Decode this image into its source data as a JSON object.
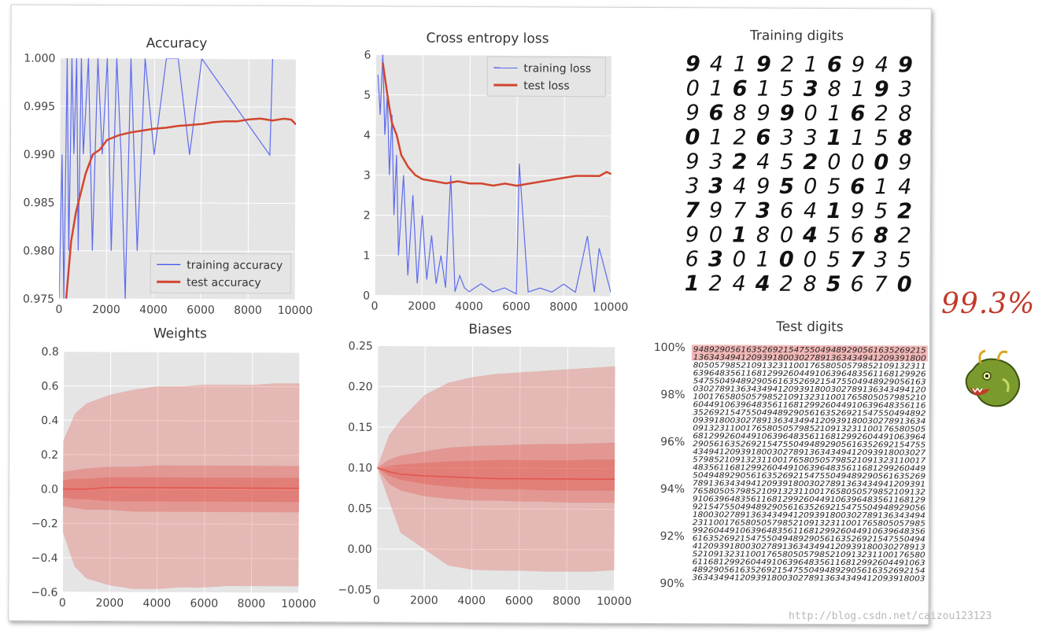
{
  "chart_data": [
    {
      "type": "line",
      "title": "Accuracy",
      "xlim": [
        0,
        10000
      ],
      "ylim": [
        0.975,
        1.0
      ],
      "xticks": [
        "0",
        "2000",
        "4000",
        "6000",
        "8000",
        "10000"
      ],
      "yticks": [
        "0.975",
        "0.980",
        "0.985",
        "0.990",
        "0.995",
        "1.000"
      ],
      "legend_position": "lower-right",
      "series": [
        {
          "name": "training accuracy",
          "color": "#3b4cf0",
          "x": [
            0,
            100,
            200,
            300,
            400,
            500,
            600,
            700,
            800,
            900,
            1000,
            1200,
            1400,
            1600,
            1800,
            2000,
            2200,
            2400,
            2600,
            2800,
            3000,
            3300,
            3600,
            4000,
            4500,
            5000,
            5500,
            6000,
            8900,
            9000
          ],
          "y": [
            0.96,
            0.99,
            0.97,
            1.0,
            0.98,
            1.0,
            0.99,
            1.0,
            0.98,
            1.0,
            0.99,
            1.0,
            0.98,
            1.0,
            0.99,
            1.0,
            0.98,
            1.0,
            0.99,
            0.97,
            1.0,
            0.98,
            1.0,
            0.99,
            1.0,
            1.0,
            0.99,
            1.0,
            0.99,
            1.0
          ]
        },
        {
          "name": "test accuracy",
          "color": "#d2452f",
          "x": [
            300,
            500,
            700,
            900,
            1100,
            1400,
            1700,
            2000,
            2500,
            3000,
            3500,
            4000,
            4500,
            5000,
            5500,
            6000,
            6500,
            7000,
            7500,
            8000,
            8500,
            9000,
            9500,
            9800,
            10000
          ],
          "y": [
            0.975,
            0.981,
            0.984,
            0.986,
            0.988,
            0.99,
            0.9905,
            0.9915,
            0.992,
            0.9923,
            0.9925,
            0.9927,
            0.9928,
            0.993,
            0.9931,
            0.9932,
            0.9934,
            0.9935,
            0.9935,
            0.9937,
            0.9938,
            0.9936,
            0.9938,
            0.9937,
            0.9932
          ]
        }
      ]
    },
    {
      "type": "line",
      "title": "Cross entropy loss",
      "xlim": [
        0,
        10000
      ],
      "ylim": [
        0,
        6
      ],
      "xticks": [
        "0",
        "2000",
        "4000",
        "6000",
        "8000",
        "10000"
      ],
      "yticks": [
        "0",
        "1",
        "2",
        "3",
        "4",
        "5",
        "6"
      ],
      "legend_position": "top-right",
      "series": [
        {
          "name": "training loss",
          "color": "#3b4cf0",
          "x": [
            100,
            200,
            300,
            400,
            500,
            600,
            700,
            800,
            900,
            1000,
            1200,
            1400,
            1600,
            1800,
            2000,
            2200,
            2400,
            2600,
            2800,
            3000,
            3200,
            3400,
            3600,
            3800,
            4000,
            4500,
            5000,
            5500,
            6000,
            6100,
            6500,
            7000,
            7500,
            8000,
            8500,
            9000,
            9300,
            9500,
            10000
          ],
          "y": [
            5.5,
            4.5,
            6.0,
            4.0,
            5.0,
            3.0,
            4.5,
            2.0,
            3.5,
            1.0,
            3.0,
            0.5,
            2.5,
            0.3,
            2.0,
            0.4,
            1.5,
            0.3,
            1.0,
            0.2,
            3.0,
            0.1,
            0.5,
            0.2,
            0.1,
            0.3,
            0.1,
            0.2,
            0.05,
            3.3,
            0.1,
            0.2,
            0.1,
            0.3,
            0.1,
            1.5,
            0.1,
            1.2,
            0.1
          ]
        },
        {
          "name": "test loss",
          "color": "#d2452f",
          "x": [
            300,
            500,
            700,
            900,
            1100,
            1400,
            1700,
            2000,
            2500,
            3000,
            3500,
            4000,
            4500,
            5000,
            5500,
            6000,
            6500,
            7000,
            7500,
            8000,
            8500,
            9000,
            9500,
            9800,
            10000
          ],
          "y": [
            5.8,
            5.0,
            4.3,
            4.0,
            3.5,
            3.2,
            3.0,
            2.9,
            2.85,
            2.8,
            2.85,
            2.8,
            2.8,
            2.75,
            2.8,
            2.75,
            2.8,
            2.85,
            2.9,
            2.95,
            3.0,
            3.0,
            3.0,
            3.1,
            3.05
          ]
        }
      ]
    },
    {
      "type": "area",
      "title": "Weights",
      "xlim": [
        0,
        10000
      ],
      "ylim": [
        -0.6,
        0.8
      ],
      "xticks": [
        "0",
        "2000",
        "4000",
        "6000",
        "8000",
        "10000"
      ],
      "yticks": [
        "−0.6",
        "−0.4",
        "−0.2",
        "0.0",
        "0.2",
        "0.4",
        "0.6",
        "0.8"
      ],
      "x": [
        0,
        500,
        1000,
        2000,
        3000,
        4000,
        5000,
        6000,
        7000,
        8000,
        9000,
        10000
      ],
      "bands": {
        "max": [
          0.28,
          0.44,
          0.5,
          0.55,
          0.58,
          0.6,
          0.6,
          0.61,
          0.61,
          0.61,
          0.62,
          0.62
        ],
        "p90": [
          0.1,
          0.11,
          0.12,
          0.13,
          0.13,
          0.14,
          0.14,
          0.14,
          0.14,
          0.14,
          0.14,
          0.14
        ],
        "p70": [
          0.05,
          0.06,
          0.06,
          0.07,
          0.07,
          0.07,
          0.07,
          0.07,
          0.07,
          0.07,
          0.07,
          0.07
        ],
        "p30": [
          -0.05,
          -0.06,
          -0.06,
          -0.07,
          -0.07,
          -0.07,
          -0.07,
          -0.07,
          -0.07,
          -0.07,
          -0.07,
          -0.07
        ],
        "p10": [
          -0.1,
          -0.11,
          -0.12,
          -0.12,
          -0.13,
          -0.13,
          -0.13,
          -0.13,
          -0.13,
          -0.13,
          -0.13,
          -0.13
        ],
        "min": [
          -0.25,
          -0.45,
          -0.52,
          -0.56,
          -0.58,
          -0.58,
          -0.57,
          -0.57,
          -0.56,
          -0.56,
          -0.56,
          -0.56
        ],
        "median": [
          0.0,
          0.0,
          0.0,
          0.01,
          0.01,
          0.01,
          0.01,
          0.01,
          0.01,
          0.01,
          0.01,
          0.01
        ]
      }
    },
    {
      "type": "area",
      "title": "Biases",
      "xlim": [
        0,
        10000
      ],
      "ylim": [
        -0.05,
        0.25
      ],
      "xticks": [
        "0",
        "2000",
        "4000",
        "6000",
        "8000",
        "10000"
      ],
      "yticks": [
        "−0.05",
        "0.00",
        "0.05",
        "0.10",
        "0.15",
        "0.20",
        "0.25"
      ],
      "x": [
        0,
        500,
        1000,
        2000,
        3000,
        4000,
        5000,
        6000,
        7000,
        8000,
        9000,
        10000
      ],
      "bands": {
        "max": [
          0.1,
          0.14,
          0.16,
          0.19,
          0.205,
          0.212,
          0.216,
          0.218,
          0.22,
          0.222,
          0.224,
          0.226
        ],
        "p90": [
          0.1,
          0.11,
          0.115,
          0.12,
          0.125,
          0.127,
          0.128,
          0.129,
          0.13,
          0.13,
          0.131,
          0.132
        ],
        "p70": [
          0.1,
          0.102,
          0.104,
          0.106,
          0.108,
          0.109,
          0.11,
          0.11,
          0.11,
          0.11,
          0.111,
          0.111
        ],
        "p30": [
          0.1,
          0.09,
          0.085,
          0.08,
          0.077,
          0.075,
          0.074,
          0.074,
          0.073,
          0.073,
          0.073,
          0.073
        ],
        "p10": [
          0.1,
          0.08,
          0.072,
          0.065,
          0.062,
          0.06,
          0.06,
          0.059,
          0.059,
          0.058,
          0.058,
          0.058
        ],
        "min": [
          0.1,
          0.06,
          0.02,
          0.0,
          -0.02,
          -0.025,
          -0.026,
          -0.026,
          -0.027,
          -0.027,
          -0.027,
          -0.025
        ],
        "median": [
          0.1,
          0.095,
          0.092,
          0.09,
          0.089,
          0.088,
          0.087,
          0.087,
          0.087,
          0.087,
          0.087,
          0.087
        ]
      }
    }
  ],
  "training_digits": {
    "title": "Training digits",
    "rows": [
      "9419216949",
      "0161538193",
      "9689901628",
      "0126331158",
      "9324520009",
      "3349505614",
      "7973641952",
      "9018045682",
      "6301005735",
      "1244285670"
    ]
  },
  "test_digits": {
    "title": "Test digits",
    "yticks": [
      "100%",
      "98%",
      "96%",
      "94%",
      "92%",
      "90%"
    ],
    "highlight_color": "#f2b8b8"
  },
  "annotation": {
    "text": "99.3%",
    "color": "#c0392b",
    "icon": "dragon-icon"
  },
  "watermark": "http://blog.csdn.net/caizou123123"
}
